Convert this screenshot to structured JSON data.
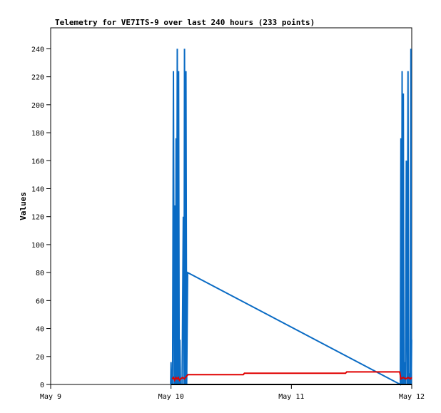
{
  "chart_data": {
    "type": "line",
    "title": "Telemetry for VE7ITS-9 over last 240 hours (233 points)",
    "xlabel": "",
    "ylabel": "Values",
    "ylim": [
      0,
      255
    ],
    "xlim_days": [
      9,
      12
    ],
    "x_ticks": [
      {
        "label": "May 9",
        "day": 9
      },
      {
        "label": "May 10",
        "day": 10
      },
      {
        "label": "May 11",
        "day": 11
      },
      {
        "label": "May 12",
        "day": 12
      }
    ],
    "y_ticks": [
      0,
      20,
      40,
      60,
      80,
      100,
      120,
      140,
      160,
      180,
      200,
      220,
      240
    ],
    "grid": false,
    "series": [
      {
        "color": "#0a6bc4",
        "points": [
          [
            9.997,
            0
          ],
          [
            10.0,
            16
          ],
          [
            10.004,
            0
          ],
          [
            10.013,
            0
          ],
          [
            10.02,
            224
          ],
          [
            10.027,
            0
          ],
          [
            10.033,
            128
          ],
          [
            10.038,
            0
          ],
          [
            10.042,
            176
          ],
          [
            10.046,
            0
          ],
          [
            10.052,
            240
          ],
          [
            10.057,
            0
          ],
          [
            10.063,
            224
          ],
          [
            10.068,
            0
          ],
          [
            10.073,
            32
          ],
          [
            10.079,
            0
          ],
          [
            10.092,
            0
          ],
          [
            10.102,
            120
          ],
          [
            10.108,
            0
          ],
          [
            10.112,
            240
          ],
          [
            10.118,
            0
          ],
          [
            10.124,
            224
          ],
          [
            10.13,
            0
          ],
          [
            10.138,
            80
          ],
          [
            11.905,
            0
          ],
          [
            11.91,
            176
          ],
          [
            11.915,
            0
          ],
          [
            11.92,
            224
          ],
          [
            11.925,
            0
          ],
          [
            11.93,
            208
          ],
          [
            11.935,
            0
          ],
          [
            11.942,
            16
          ],
          [
            11.948,
            0
          ],
          [
            11.955,
            160
          ],
          [
            11.962,
            0
          ],
          [
            11.969,
            224
          ],
          [
            11.974,
            0
          ],
          [
            11.98,
            8
          ],
          [
            11.987,
            0
          ],
          [
            11.993,
            240
          ],
          [
            11.996,
            0
          ],
          [
            11.999,
            32
          ]
        ]
      },
      {
        "color": "#e00000",
        "points": [
          [
            10.01,
            4
          ],
          [
            10.02,
            5
          ],
          [
            10.03,
            3
          ],
          [
            10.04,
            5
          ],
          [
            10.05,
            4
          ],
          [
            10.06,
            5
          ],
          [
            10.07,
            3
          ],
          [
            10.08,
            4
          ],
          [
            10.095,
            5
          ],
          [
            10.11,
            4
          ],
          [
            10.14,
            7
          ],
          [
            10.6,
            7
          ],
          [
            10.61,
            8
          ],
          [
            11.45,
            8
          ],
          [
            11.46,
            9
          ],
          [
            11.9,
            9
          ],
          [
            11.91,
            4
          ],
          [
            11.93,
            5
          ],
          [
            11.95,
            4
          ],
          [
            11.97,
            5
          ],
          [
            11.99,
            4
          ],
          [
            12.0,
            5
          ]
        ]
      },
      {
        "color": "#000000",
        "points": [
          [
            10.0,
            0
          ],
          [
            12.0,
            0
          ]
        ]
      }
    ]
  }
}
